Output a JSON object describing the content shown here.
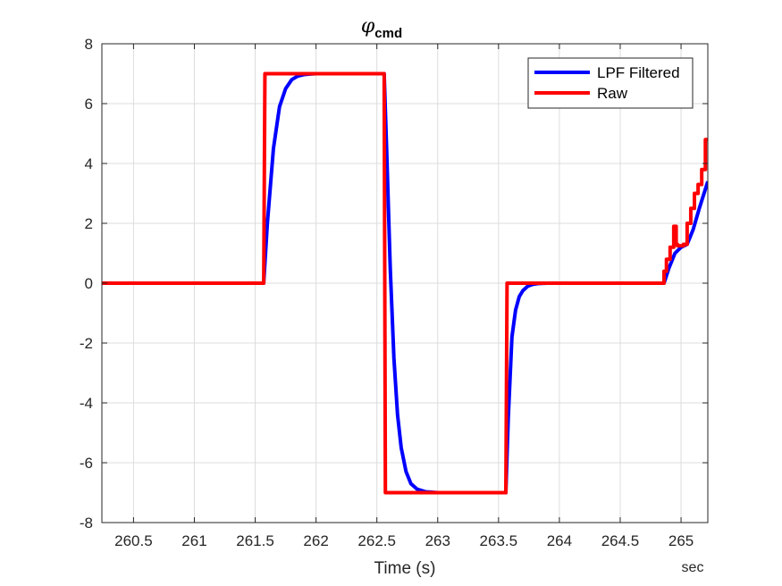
{
  "chart_data": {
    "type": "line",
    "title_symbol": "φ",
    "title_subscript": "cmd",
    "xlabel": "Time (s)",
    "x_unit": "sec",
    "ylabel": "",
    "xlim": [
      260.24,
      265.22
    ],
    "ylim": [
      -8,
      8
    ],
    "xticks": [
      260.5,
      261,
      261.5,
      262,
      262.5,
      263,
      263.5,
      264,
      264.5,
      265
    ],
    "xtick_labels": [
      "260.5",
      "261",
      "261.5",
      "262",
      "262.5",
      "263",
      "263.5",
      "264",
      "264.5",
      "265"
    ],
    "yticks": [
      8,
      6,
      4,
      2,
      0,
      -2,
      -4,
      -6,
      -8
    ],
    "ytick_labels": [
      "8",
      "6",
      "4",
      "2",
      "0",
      "-2",
      "-4",
      "-6",
      "-8"
    ],
    "grid": true,
    "legend_position": "top-right",
    "series": [
      {
        "name": "LPF Filtered",
        "color": "#0000ff",
        "x": [
          260.24,
          261.57,
          261.6,
          261.65,
          261.7,
          261.75,
          261.8,
          261.85,
          261.9,
          261.95,
          262.0,
          262.56,
          262.58,
          262.61,
          262.64,
          262.67,
          262.7,
          262.74,
          262.78,
          262.83,
          262.9,
          263.0,
          263.56,
          263.58,
          263.61,
          263.64,
          263.67,
          263.7,
          263.74,
          263.78,
          263.83,
          263.9,
          264.0,
          264.86,
          264.9,
          264.95,
          265.0,
          265.05,
          265.1,
          265.15,
          265.22
        ],
        "y": [
          0,
          0,
          2.0,
          4.5,
          5.9,
          6.5,
          6.8,
          6.92,
          6.97,
          6.99,
          7.0,
          7.0,
          4.5,
          0.5,
          -2.5,
          -4.4,
          -5.5,
          -6.3,
          -6.7,
          -6.88,
          -6.97,
          -7.0,
          -7.0,
          -4.5,
          -1.8,
          -0.9,
          -0.45,
          -0.25,
          -0.1,
          -0.04,
          -0.01,
          0,
          0,
          0,
          0.5,
          1.0,
          1.2,
          1.3,
          1.8,
          2.5,
          3.4
        ]
      },
      {
        "name": "Raw",
        "color": "#ff0000",
        "x": [
          260.24,
          261.57,
          261.58,
          262.56,
          262.57,
          263.56,
          263.57,
          264.86,
          264.86,
          264.88,
          264.88,
          264.91,
          264.91,
          264.94,
          264.94,
          264.96,
          264.96,
          264.97,
          264.97,
          265.02,
          265.02,
          265.05,
          265.05,
          265.08,
          265.08,
          265.11,
          265.11,
          265.14,
          265.14,
          265.17,
          265.17,
          265.2,
          265.2,
          265.22
        ],
        "y": [
          0,
          0,
          7,
          7,
          -7,
          -7,
          0,
          0,
          0.4,
          0.4,
          0.8,
          0.8,
          1.2,
          1.2,
          1.9,
          1.9,
          1.3,
          1.3,
          1.25,
          1.25,
          1.3,
          1.3,
          2.0,
          2.0,
          2.5,
          2.5,
          3.0,
          3.0,
          3.3,
          3.3,
          3.8,
          3.8,
          4.8,
          4.8
        ]
      }
    ]
  }
}
